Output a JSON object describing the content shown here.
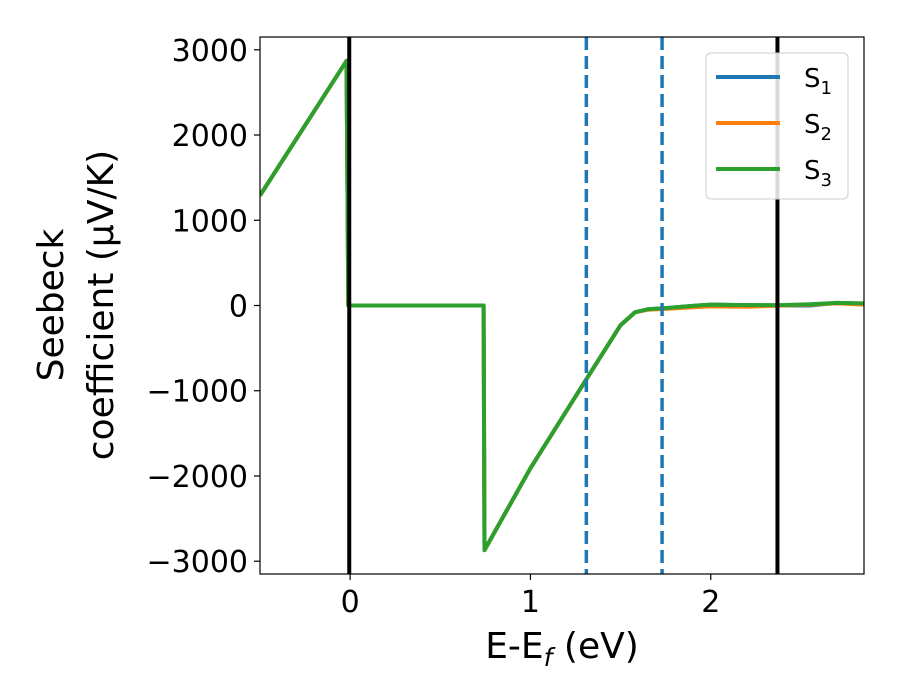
{
  "chart_data": {
    "type": "line",
    "xlabel": "E-E",
    "xlabel_sub": "f",
    "xlabel_unit": " (eV)",
    "ylabel_line1": "Seebeck",
    "ylabel_line2": "coefficient  (μV/K)",
    "xlim": [
      -0.5,
      2.85
    ],
    "ylim": [
      -3150,
      3150
    ],
    "xticks": [
      0,
      1,
      2
    ],
    "xtick_labels": [
      "0",
      "1",
      "2"
    ],
    "yticks": [
      3000,
      2000,
      1000,
      0,
      -1000,
      -2000,
      -3000
    ],
    "ytick_labels": [
      "3000",
      "2000",
      "1000",
      "0",
      "−1000",
      "−2000",
      "−3000"
    ],
    "grid": false,
    "legend_placement": "top-right",
    "vlines": [
      {
        "x": -0.005,
        "style": "solid",
        "color": "#000000"
      },
      {
        "x": 1.31,
        "style": "dashed",
        "color": "#1f77b4"
      },
      {
        "x": 1.73,
        "style": "dashed",
        "color": "#1f77b4"
      },
      {
        "x": 2.37,
        "style": "solid",
        "color": "#000000"
      }
    ],
    "series": [
      {
        "name": "S",
        "sub": "1",
        "color": "#1f77b4",
        "x": [
          -0.5,
          -0.02,
          -0.01,
          0.74,
          0.745,
          1.0,
          1.3,
          1.5,
          1.58,
          1.65,
          1.75,
          1.9,
          2.0,
          2.2,
          2.4,
          2.55,
          2.7,
          2.85
        ],
        "y": [
          1290,
          2870,
          0,
          0,
          -2870,
          -1910,
          -900,
          -230,
          -80,
          -45,
          -30,
          -5,
          10,
          5,
          0,
          0,
          30,
          20
        ]
      },
      {
        "name": "S",
        "sub": "2",
        "color": "#ff7f0e",
        "x": [
          -0.5,
          -0.02,
          -0.01,
          0.74,
          0.745,
          1.0,
          1.3,
          1.5,
          1.58,
          1.65,
          1.75,
          1.9,
          2.0,
          2.2,
          2.4,
          2.55,
          2.7,
          2.85
        ],
        "y": [
          1290,
          2870,
          0,
          0,
          -2870,
          -1910,
          -900,
          -230,
          -80,
          -50,
          -40,
          -20,
          -10,
          -15,
          0,
          10,
          25,
          10
        ]
      },
      {
        "name": "S",
        "sub": "3",
        "color": "#2ca02c",
        "x": [
          -0.5,
          -0.02,
          -0.01,
          0.74,
          0.745,
          1.0,
          1.3,
          1.5,
          1.58,
          1.65,
          1.75,
          1.9,
          2.0,
          2.2,
          2.4,
          2.55,
          2.7,
          2.85
        ],
        "y": [
          1290,
          2870,
          0,
          0,
          -2870,
          -1910,
          -900,
          -230,
          -80,
          -45,
          -30,
          -5,
          10,
          5,
          5,
          15,
          30,
          25
        ]
      }
    ]
  }
}
